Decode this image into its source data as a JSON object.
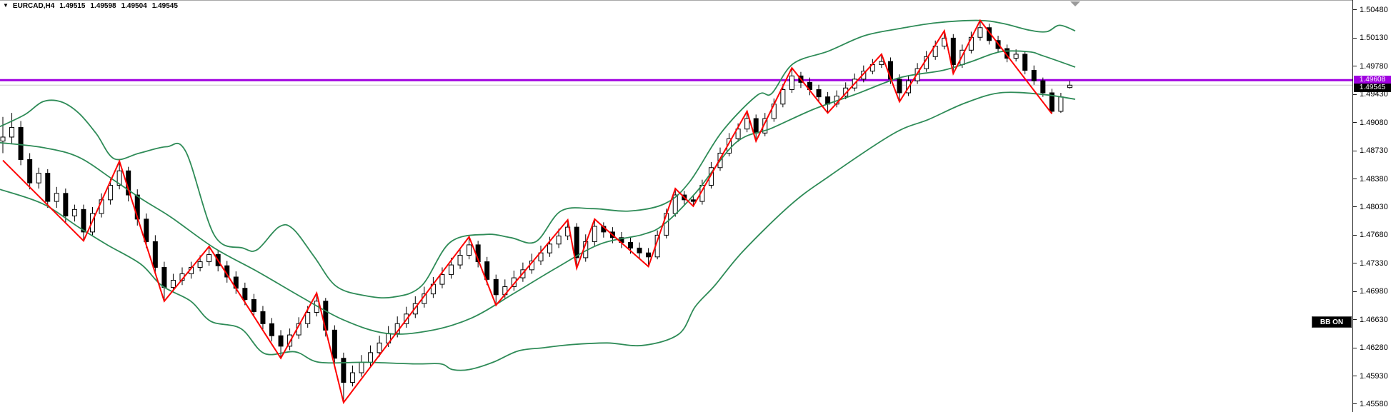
{
  "header": {
    "dropdown_icon": "▼",
    "symbol": "EURCAD,H4",
    "ohlc": {
      "open": "1.49515",
      "high": "1.49598",
      "low": "1.49504",
      "close": "1.49545"
    }
  },
  "controls": {
    "bb_toggle_label": "BB ON"
  },
  "price_labels": {
    "hline": "1.49608",
    "current": "1.49545"
  },
  "colors": {
    "background": "#FFFFFF",
    "band_line": "#2E8B57",
    "zigzag_line": "#FF0000",
    "hline": "#A000E0",
    "hline_label_bg": "#A000E0",
    "current_line": "#C8C8C8",
    "current_label_bg": "#000000",
    "bull_fill": "#FFFFFF",
    "bear_fill": "#000000",
    "candle_outline": "#000000",
    "axis_text": "#000000"
  },
  "chart_data": {
    "type": "candlestick",
    "symbol": "EURCAD",
    "timeframe": "H4",
    "last_quote": {
      "open": 1.49515,
      "high": 1.49598,
      "low": 1.49504,
      "close": 1.49545
    },
    "horizontal_line_price": 1.49608,
    "current_price": 1.49545,
    "price_axis": {
      "format_decimals": 5,
      "tick_values": [
        1.5048,
        1.5013,
        1.4978,
        1.4943,
        1.4908,
        1.4873,
        1.4838,
        1.4803,
        1.4768,
        1.4733,
        1.4698,
        1.4663,
        1.4628,
        1.4593,
        1.4558
      ]
    },
    "candles": [
      [
        1.4885,
        1.4915,
        1.487,
        1.489
      ],
      [
        1.489,
        1.492,
        1.4882,
        1.4902
      ],
      [
        1.4902,
        1.491,
        1.4855,
        1.4862
      ],
      [
        1.4862,
        1.487,
        1.4825,
        1.4833
      ],
      [
        1.4833,
        1.4852,
        1.4826,
        1.4845
      ],
      [
        1.4845,
        1.485,
        1.4802,
        1.481
      ],
      [
        1.481,
        1.4828,
        1.4802,
        1.482
      ],
      [
        1.482,
        1.4826,
        1.4783,
        1.4792
      ],
      [
        1.4792,
        1.4806,
        1.4785,
        1.48
      ],
      [
        1.48,
        1.4806,
        1.4761,
        1.4772
      ],
      [
        1.4772,
        1.4803,
        1.4768,
        1.4795
      ],
      [
        1.4795,
        1.482,
        1.479,
        1.4812
      ],
      [
        1.4812,
        1.4838,
        1.4806,
        1.483
      ],
      [
        1.483,
        1.486,
        1.4825,
        1.4848
      ],
      [
        1.4848,
        1.4853,
        1.481,
        1.4818
      ],
      [
        1.4818,
        1.4825,
        1.478,
        1.4788
      ],
      [
        1.4788,
        1.4795,
        1.4752,
        1.476
      ],
      [
        1.476,
        1.4768,
        1.472,
        1.4728
      ],
      [
        1.4728,
        1.4735,
        1.4686,
        1.4703
      ],
      [
        1.4703,
        1.472,
        1.4698,
        1.4712
      ],
      [
        1.4712,
        1.4728,
        1.4706,
        1.472
      ],
      [
        1.472,
        1.4735,
        1.4714,
        1.4728
      ],
      [
        1.4728,
        1.4743,
        1.4723,
        1.4735
      ],
      [
        1.4735,
        1.4754,
        1.473,
        1.4744
      ],
      [
        1.4744,
        1.4749,
        1.4723,
        1.473
      ],
      [
        1.473,
        1.4736,
        1.4709,
        1.4716
      ],
      [
        1.4716,
        1.4723,
        1.4695,
        1.4702
      ],
      [
        1.4702,
        1.4709,
        1.4681,
        1.4688
      ],
      [
        1.4688,
        1.4695,
        1.4666,
        1.4673
      ],
      [
        1.4673,
        1.468,
        1.4651,
        1.4658
      ],
      [
        1.4658,
        1.4665,
        1.4636,
        1.4643
      ],
      [
        1.4643,
        1.465,
        1.4615,
        1.463
      ],
      [
        1.463,
        1.4652,
        1.4625,
        1.4644
      ],
      [
        1.4644,
        1.4666,
        1.4639,
        1.4658
      ],
      [
        1.4658,
        1.468,
        1.4653,
        1.4672
      ],
      [
        1.4672,
        1.4696,
        1.4667,
        1.4686
      ],
      [
        1.4686,
        1.469,
        1.4642,
        1.465
      ],
      [
        1.465,
        1.4656,
        1.4608,
        1.4615
      ],
      [
        1.4615,
        1.4622,
        1.456,
        1.4585
      ],
      [
        1.4585,
        1.4606,
        1.458,
        1.4597
      ],
      [
        1.4597,
        1.4619,
        1.4592,
        1.461
      ],
      [
        1.461,
        1.4631,
        1.4605,
        1.4622
      ],
      [
        1.4622,
        1.4643,
        1.4617,
        1.4634
      ],
      [
        1.4634,
        1.4655,
        1.4629,
        1.4646
      ],
      [
        1.4646,
        1.4667,
        1.4641,
        1.4658
      ],
      [
        1.4658,
        1.4679,
        1.4653,
        1.467
      ],
      [
        1.467,
        1.4692,
        1.4665,
        1.4683
      ],
      [
        1.4683,
        1.4704,
        1.4678,
        1.4695
      ],
      [
        1.4695,
        1.4716,
        1.469,
        1.4707
      ],
      [
        1.4707,
        1.4728,
        1.4702,
        1.4719
      ],
      [
        1.4719,
        1.474,
        1.4714,
        1.4731
      ],
      [
        1.4731,
        1.4752,
        1.4726,
        1.4743
      ],
      [
        1.4743,
        1.4766,
        1.4738,
        1.4756
      ],
      [
        1.4756,
        1.4761,
        1.4728,
        1.4735
      ],
      [
        1.4735,
        1.4741,
        1.4706,
        1.4713
      ],
      [
        1.4713,
        1.4719,
        1.4681,
        1.4694
      ],
      [
        1.4694,
        1.4713,
        1.4689,
        1.4704
      ],
      [
        1.4704,
        1.4724,
        1.4699,
        1.4715
      ],
      [
        1.4715,
        1.4734,
        1.471,
        1.4725
      ],
      [
        1.4725,
        1.4745,
        1.472,
        1.4736
      ],
      [
        1.4736,
        1.4755,
        1.4731,
        1.4746
      ],
      [
        1.4746,
        1.4766,
        1.4741,
        1.4757
      ],
      [
        1.4757,
        1.4776,
        1.4752,
        1.4767
      ],
      [
        1.4767,
        1.4787,
        1.4762,
        1.4778
      ],
      [
        1.4778,
        1.4783,
        1.4727,
        1.474
      ],
      [
        1.474,
        1.4769,
        1.4735,
        1.476
      ],
      [
        1.476,
        1.4788,
        1.4755,
        1.4779
      ],
      [
        1.4779,
        1.4784,
        1.4765,
        1.4772
      ],
      [
        1.4772,
        1.4778,
        1.4758,
        1.4765
      ],
      [
        1.4765,
        1.4772,
        1.4752,
        1.4759
      ],
      [
        1.4759,
        1.4765,
        1.4745,
        1.4752
      ],
      [
        1.4752,
        1.4759,
        1.4739,
        1.4746
      ],
      [
        1.4746,
        1.4752,
        1.4729,
        1.4741
      ],
      [
        1.4741,
        1.4774,
        1.4738,
        1.4768
      ],
      [
        1.4768,
        1.4801,
        1.4764,
        1.4795
      ],
      [
        1.4795,
        1.4826,
        1.4791,
        1.4818
      ],
      [
        1.4818,
        1.4823,
        1.4806,
        1.4812
      ],
      [
        1.4812,
        1.4817,
        1.4804,
        1.481
      ],
      [
        1.481,
        1.4837,
        1.4806,
        1.483
      ],
      [
        1.483,
        1.4859,
        1.4826,
        1.4852
      ],
      [
        1.4852,
        1.4877,
        1.4848,
        1.487
      ],
      [
        1.487,
        1.4895,
        1.4866,
        1.4888
      ],
      [
        1.4888,
        1.4907,
        1.4884,
        1.49
      ],
      [
        1.49,
        1.4922,
        1.4896,
        1.4913
      ],
      [
        1.4913,
        1.4918,
        1.4885,
        1.4895
      ],
      [
        1.4895,
        1.492,
        1.4891,
        1.4913
      ],
      [
        1.4913,
        1.4938,
        1.4909,
        1.4931
      ],
      [
        1.4931,
        1.4956,
        1.4927,
        1.4949
      ],
      [
        1.4949,
        1.4976,
        1.4945,
        1.4966
      ],
      [
        1.4966,
        1.4971,
        1.4951,
        1.4958
      ],
      [
        1.4958,
        1.4964,
        1.4942,
        1.4949
      ],
      [
        1.4949,
        1.4955,
        1.4933,
        1.494
      ],
      [
        1.494,
        1.4946,
        1.492,
        1.4931
      ],
      [
        1.4931,
        1.4948,
        1.4927,
        1.4941
      ],
      [
        1.4941,
        1.4958,
        1.4937,
        1.4951
      ],
      [
        1.4951,
        1.4969,
        1.4947,
        1.4962
      ],
      [
        1.4962,
        1.4979,
        1.4958,
        1.4972
      ],
      [
        1.4972,
        1.4987,
        1.4968,
        1.498
      ],
      [
        1.498,
        1.4993,
        1.4976,
        1.4984
      ],
      [
        1.4984,
        1.4989,
        1.4956,
        1.4962
      ],
      [
        1.4962,
        1.4968,
        1.4934,
        1.4945
      ],
      [
        1.4945,
        1.4967,
        1.4941,
        1.496
      ],
      [
        1.496,
        1.4982,
        1.4956,
        1.4975
      ],
      [
        1.4975,
        1.4997,
        1.4971,
        1.499
      ],
      [
        1.499,
        1.501,
        1.4986,
        1.5003
      ],
      [
        1.5003,
        1.5022,
        1.4999,
        1.5013
      ],
      [
        1.5013,
        1.5018,
        1.4969,
        1.498
      ],
      [
        1.498,
        1.5005,
        1.4976,
        1.4998
      ],
      [
        1.4998,
        1.5021,
        1.4994,
        1.5014
      ],
      [
        1.5014,
        1.5035,
        1.501,
        1.5026
      ],
      [
        1.5026,
        1.5031,
        1.5005,
        1.501
      ],
      [
        1.501,
        1.5016,
        1.4995,
        1.5
      ],
      [
        1.5,
        1.5005,
        1.4983,
        1.4988
      ],
      [
        1.4988,
        1.4999,
        1.4984,
        1.4993
      ],
      [
        1.4993,
        1.4997,
        1.4968,
        1.4973
      ],
      [
        1.4973,
        1.4979,
        1.4955,
        1.496
      ],
      [
        1.496,
        1.4964,
        1.494,
        1.4945
      ],
      [
        1.4945,
        1.495,
        1.4919,
        1.4922
      ],
      [
        1.4922,
        1.4945,
        1.492,
        1.494
      ],
      [
        1.49515,
        1.49598,
        1.49504,
        1.49545
      ]
    ],
    "zigzag": [
      [
        0,
        1.4861
      ],
      [
        9,
        1.4761
      ],
      [
        13,
        1.486
      ],
      [
        18,
        1.4686
      ],
      [
        23,
        1.4754
      ],
      [
        31,
        1.4615
      ],
      [
        35,
        1.4696
      ],
      [
        38,
        1.456
      ],
      [
        52,
        1.4766
      ],
      [
        55,
        1.4681
      ],
      [
        63,
        1.4787
      ],
      [
        64,
        1.4727
      ],
      [
        66,
        1.4788
      ],
      [
        72,
        1.4729
      ],
      [
        75,
        1.4826
      ],
      [
        77,
        1.4804
      ],
      [
        83,
        1.4922
      ],
      [
        84,
        1.4885
      ],
      [
        88,
        1.4976
      ],
      [
        92,
        1.492
      ],
      [
        98,
        1.4993
      ],
      [
        100,
        1.4934
      ],
      [
        105,
        1.5022
      ],
      [
        106,
        1.4969
      ],
      [
        109,
        1.5035
      ],
      [
        117,
        1.4919
      ]
    ],
    "bollinger_bands": {
      "note": "anchor points as [x_px, price]",
      "upper": [
        [
          0,
          1.4903
        ],
        [
          35,
          1.4918
        ],
        [
          60,
          1.4934
        ],
        [
          85,
          1.4934
        ],
        [
          110,
          1.492
        ],
        [
          135,
          1.4894
        ],
        [
          160,
          1.4863
        ],
        [
          195,
          1.487
        ],
        [
          233,
          1.4878
        ],
        [
          260,
          1.4872
        ],
        [
          300,
          1.4768
        ],
        [
          340,
          1.4752
        ],
        [
          360,
          1.475
        ],
        [
          390,
          1.4778
        ],
        [
          410,
          1.4776
        ],
        [
          440,
          1.4741
        ],
        [
          470,
          1.4705
        ],
        [
          510,
          1.4693
        ],
        [
          550,
          1.4691
        ],
        [
          590,
          1.4705
        ],
        [
          630,
          1.4759
        ],
        [
          680,
          1.4769
        ],
        [
          715,
          1.4765
        ],
        [
          750,
          1.476
        ],
        [
          785,
          1.4798
        ],
        [
          830,
          1.4801
        ],
        [
          880,
          1.4798
        ],
        [
          930,
          1.4807
        ],
        [
          965,
          1.4834
        ],
        [
          1010,
          1.4896
        ],
        [
          1060,
          1.4942
        ],
        [
          1080,
          1.4944
        ],
        [
          1110,
          1.4981
        ],
        [
          1160,
          1.4997
        ],
        [
          1210,
          1.5016
        ],
        [
          1260,
          1.5025
        ],
        [
          1310,
          1.5032
        ],
        [
          1370,
          1.5035
        ],
        [
          1405,
          1.5031
        ],
        [
          1440,
          1.5023
        ],
        [
          1465,
          1.5021
        ],
        [
          1483,
          1.5029
        ],
        [
          1505,
          1.5022
        ]
      ],
      "middle": [
        [
          0,
          1.4883
        ],
        [
          60,
          1.4877
        ],
        [
          110,
          1.4865
        ],
        [
          160,
          1.4836
        ],
        [
          200,
          1.4812
        ],
        [
          240,
          1.479
        ],
        [
          300,
          1.4752
        ],
        [
          360,
          1.4723
        ],
        [
          420,
          1.4692
        ],
        [
          480,
          1.4663
        ],
        [
          540,
          1.4646
        ],
        [
          600,
          1.4649
        ],
        [
          660,
          1.4665
        ],
        [
          720,
          1.4696
        ],
        [
          780,
          1.4728
        ],
        [
          840,
          1.4757
        ],
        [
          900,
          1.4769
        ],
        [
          930,
          1.4782
        ],
        [
          975,
          1.4822
        ],
        [
          1030,
          1.4883
        ],
        [
          1080,
          1.4901
        ],
        [
          1140,
          1.4925
        ],
        [
          1200,
          1.4944
        ],
        [
          1260,
          1.4964
        ],
        [
          1320,
          1.4973
        ],
        [
          1360,
          1.4984
        ],
        [
          1400,
          1.4996
        ],
        [
          1440,
          1.4996
        ],
        [
          1460,
          1.4991
        ],
        [
          1505,
          1.4977
        ]
      ],
      "lower": [
        [
          0,
          1.4825
        ],
        [
          60,
          1.4807
        ],
        [
          110,
          1.4778
        ],
        [
          150,
          1.4756
        ],
        [
          197,
          1.4732
        ],
        [
          227,
          1.4705
        ],
        [
          267,
          1.4686
        ],
        [
          295,
          1.4661
        ],
        [
          337,
          1.4652
        ],
        [
          370,
          1.4621
        ],
        [
          413,
          1.4623
        ],
        [
          447,
          1.461
        ],
        [
          513,
          1.461
        ],
        [
          580,
          1.4608
        ],
        [
          617,
          1.4608
        ],
        [
          633,
          1.4601
        ],
        [
          657,
          1.4601
        ],
        [
          690,
          1.461
        ],
        [
          725,
          1.4624
        ],
        [
          760,
          1.4628
        ],
        [
          800,
          1.4632
        ],
        [
          850,
          1.4634
        ],
        [
          900,
          1.4631
        ],
        [
          950,
          1.4645
        ],
        [
          973,
          1.4679
        ],
        [
          1000,
          1.4705
        ],
        [
          1040,
          1.4748
        ],
        [
          1107,
          1.4806
        ],
        [
          1160,
          1.4841
        ],
        [
          1250,
          1.4894
        ],
        [
          1300,
          1.4912
        ],
        [
          1350,
          1.4932
        ],
        [
          1400,
          1.4945
        ],
        [
          1460,
          1.4943
        ],
        [
          1505,
          1.4937
        ]
      ]
    }
  }
}
